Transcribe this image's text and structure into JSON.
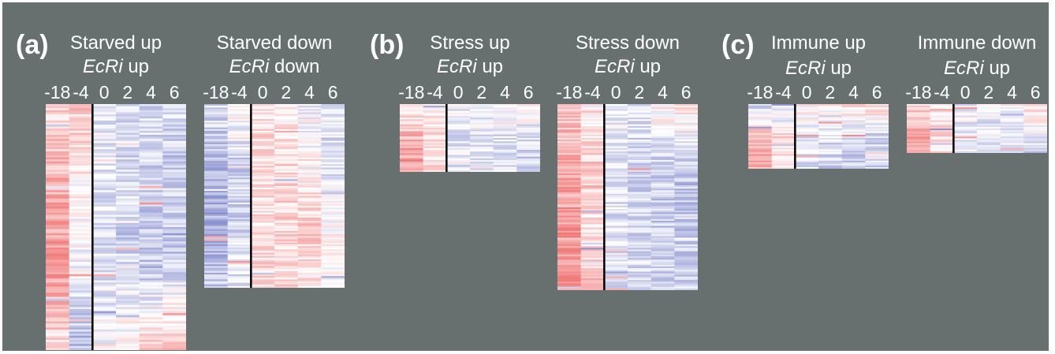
{
  "panel_labels": [
    "(a)",
    "(b)",
    "(c)"
  ],
  "colors": {
    "background": "#676f6f",
    "high": "#ef6f6f",
    "mid": "#ffffff",
    "low": "#6f78c6",
    "divider": "#000000",
    "text": "#ffffff"
  },
  "chart_data": [
    {
      "type": "heatmap",
      "panel": "(a)",
      "title": "Starved up",
      "subtitle_gene": "EcRi",
      "subtitle_dir": "up",
      "x_ticks": [
        "-18",
        "-4",
        "0",
        "2",
        "4",
        "6"
      ],
      "n_rows": 120,
      "divider_after_column": 2,
      "profile": [
        [
          0.25,
          0.4,
          -0.15,
          -0.25,
          -0.3,
          -0.25
        ],
        [
          0.55,
          0.1,
          -0.2,
          -0.3,
          -0.35,
          -0.3
        ],
        [
          0.7,
          -0.05,
          -0.25,
          -0.3,
          -0.4,
          -0.35
        ],
        [
          0.2,
          -0.5,
          0.05,
          0.1,
          0.35,
          0.45
        ]
      ]
    },
    {
      "type": "heatmap",
      "panel": "(a)",
      "title": "Starved down",
      "subtitle_gene": "EcRi",
      "subtitle_dir": "down",
      "x_ticks": [
        "-18",
        "-4",
        "0",
        "2",
        "4",
        "6"
      ],
      "n_rows": 110,
      "divider_after_column": 2,
      "profile": [
        [
          -0.2,
          0.1,
          0.2,
          0.15,
          -0.1,
          -0.25
        ],
        [
          -0.55,
          -0.35,
          0.25,
          0.3,
          0.05,
          -0.2
        ],
        [
          -0.6,
          -0.3,
          0.2,
          0.3,
          0.35,
          0.05
        ],
        [
          -0.4,
          -0.2,
          0.3,
          0.25,
          0.15,
          -0.1
        ]
      ]
    },
    {
      "type": "heatmap",
      "panel": "(b)",
      "title": "Stress up",
      "subtitle_gene": "EcRi",
      "subtitle_dir": "up",
      "x_ticks": [
        "-18",
        "-4",
        "0",
        "2",
        "4",
        "6"
      ],
      "n_rows": 40,
      "divider_after_column": 2,
      "profile": [
        [
          0.0,
          0.1,
          -0.1,
          -0.1,
          0.15,
          0.2
        ],
        [
          0.55,
          0.3,
          -0.2,
          -0.2,
          -0.25,
          -0.3
        ],
        [
          0.7,
          0.2,
          -0.25,
          -0.3,
          -0.3,
          -0.35
        ]
      ]
    },
    {
      "type": "heatmap",
      "panel": "(b)",
      "title": "Stress down",
      "subtitle_gene": "EcRi",
      "subtitle_dir": "up",
      "x_ticks": [
        "-18",
        "-4",
        "0",
        "2",
        "4",
        "6"
      ],
      "n_rows": 110,
      "divider_after_column": 2,
      "profile": [
        [
          0.3,
          0.0,
          -0.1,
          -0.2,
          0.1,
          0.2
        ],
        [
          0.6,
          0.35,
          -0.2,
          -0.3,
          -0.35,
          -0.4
        ],
        [
          0.7,
          0.2,
          -0.25,
          -0.3,
          -0.35,
          -0.4
        ],
        [
          0.65,
          0.45,
          -0.2,
          -0.25,
          -0.3,
          -0.3
        ]
      ]
    },
    {
      "type": "heatmap",
      "panel": "(c)",
      "title": "Immune up",
      "subtitle_gene": "EcRi",
      "subtitle_dir": "up",
      "x_ticks": [
        "-18",
        "-4",
        "0",
        "2",
        "4",
        "6"
      ],
      "n_rows": 40,
      "divider_after_column": 2,
      "profile": [
        [
          -0.3,
          -0.2,
          0.1,
          0.15,
          0.25,
          0.3
        ],
        [
          0.55,
          0.25,
          -0.2,
          -0.25,
          -0.3,
          -0.3
        ],
        [
          0.6,
          0.2,
          -0.2,
          -0.3,
          -0.35,
          -0.35
        ]
      ]
    },
    {
      "type": "heatmap",
      "panel": "(c)",
      "title": "Immune down",
      "subtitle_gene": "EcRi",
      "subtitle_dir": "up",
      "x_ticks": [
        "-18",
        "-4",
        "0",
        "2",
        "4",
        "6"
      ],
      "n_rows": 30,
      "divider_after_column": 2,
      "profile": [
        [
          0.3,
          0.1,
          -0.1,
          -0.1,
          0.05,
          0.25
        ],
        [
          0.7,
          0.3,
          -0.2,
          -0.2,
          -0.25,
          -0.3
        ]
      ]
    }
  ]
}
